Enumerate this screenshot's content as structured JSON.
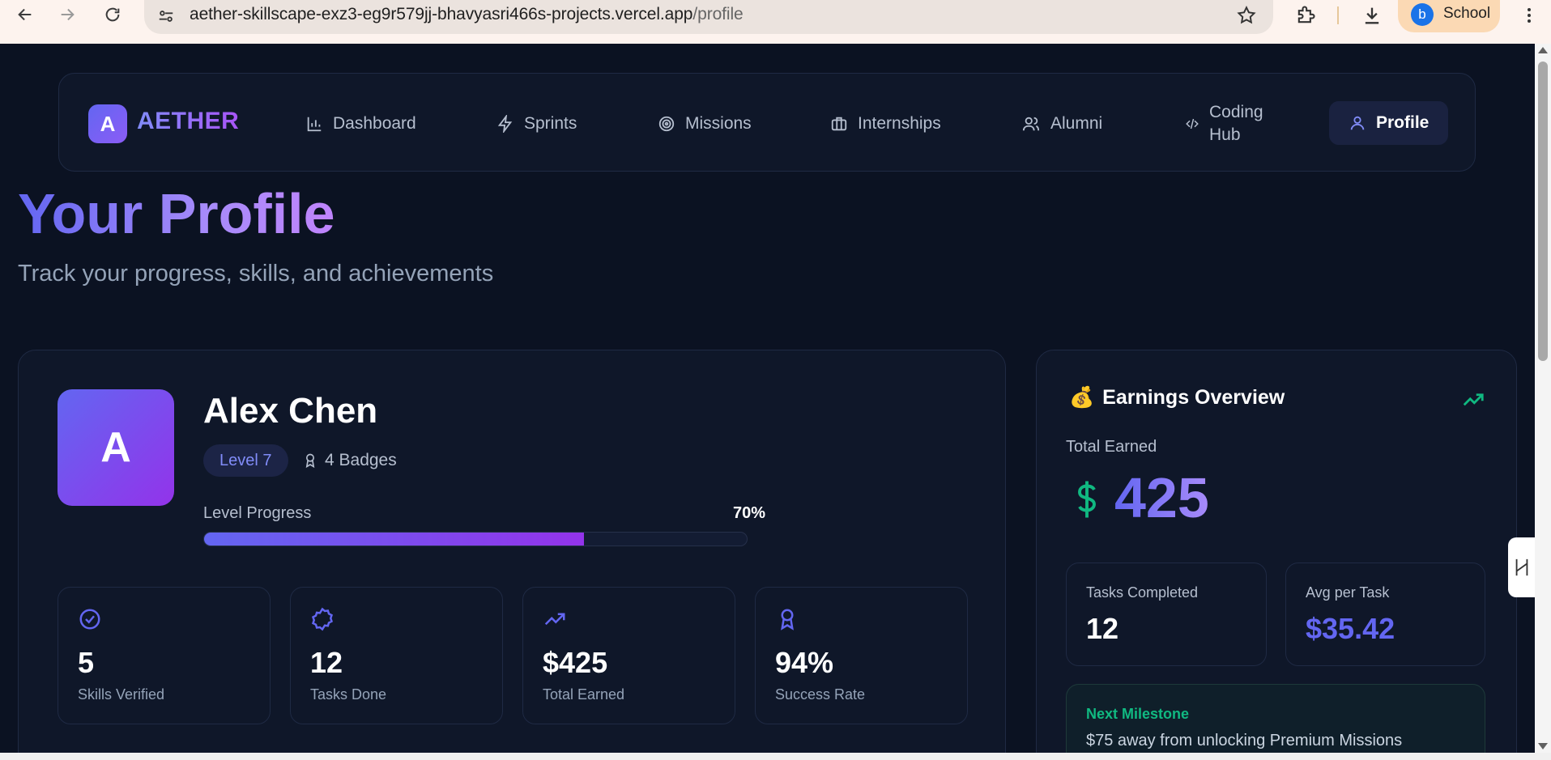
{
  "browser": {
    "url_host": "aether-skillscape-exz3-eg9r579jj-bhavyasri466s-projects.vercel.app",
    "url_path": "/profile",
    "profile_initial": "b",
    "profile_name": "School"
  },
  "nav": {
    "logo_letter": "A",
    "logo_text": "AETHER",
    "items": [
      {
        "label": "Dashboard",
        "icon": "bar-chart-icon"
      },
      {
        "label": "Sprints",
        "icon": "lightning-icon"
      },
      {
        "label": "Missions",
        "icon": "target-icon"
      },
      {
        "label": "Internships",
        "icon": "briefcase-icon"
      },
      {
        "label": "Alumni",
        "icon": "users-icon"
      },
      {
        "label_line1": "Coding",
        "label_line2": "Hub",
        "icon": "code-icon"
      },
      {
        "label": "Profile",
        "icon": "user-icon",
        "active": true
      }
    ]
  },
  "header": {
    "title": "Your Profile",
    "subtitle": "Track your progress, skills, and achievements"
  },
  "profile": {
    "avatar_letter": "A",
    "name": "Alex Chen",
    "level": "Level 7",
    "badges": "4 Badges",
    "level_progress_label": "Level Progress",
    "level_progress_pct_text": "70%",
    "level_progress_value": 0.7,
    "stats": [
      {
        "value": "5",
        "label": "Skills Verified",
        "icon": "check-circle-icon"
      },
      {
        "value": "12",
        "label": "Tasks Done",
        "icon": "badge-icon"
      },
      {
        "value": "$425",
        "label": "Total Earned",
        "icon": "trending-up-icon"
      },
      {
        "value": "94%",
        "label": "Success Rate",
        "icon": "award-icon"
      }
    ]
  },
  "earnings": {
    "emoji": "💰",
    "title": "Earnings Overview",
    "total_label": "Total Earned",
    "total_amount": "425",
    "tasks_completed_label": "Tasks Completed",
    "tasks_completed_value": "12",
    "avg_label": "Avg per Task",
    "avg_value": "$35.42",
    "milestone_head": "Next Milestone",
    "milestone_body": "$75 away from unlocking Premium Missions"
  },
  "colors": {
    "background": "#0b1222",
    "card": "#0f1729",
    "accent": "#6366f1",
    "accent2": "#9333ea",
    "green": "#10b981"
  }
}
